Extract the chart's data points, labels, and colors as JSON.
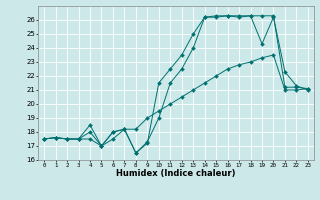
{
  "title": "",
  "xlabel": "Humidex (Indice chaleur)",
  "bg_color": "#cce8e8",
  "grid_color": "#ffffff",
  "line_color": "#007070",
  "xlim": [
    -0.5,
    23.5
  ],
  "ylim": [
    16,
    27
  ],
  "xticks": [
    0,
    1,
    2,
    3,
    4,
    5,
    6,
    7,
    8,
    9,
    10,
    11,
    12,
    13,
    14,
    15,
    16,
    17,
    18,
    19,
    20,
    21,
    22,
    23
  ],
  "yticks": [
    16,
    17,
    18,
    19,
    20,
    21,
    22,
    23,
    24,
    25,
    26
  ],
  "series": [
    {
      "x": [
        0,
        1,
        2,
        3,
        4,
        5,
        6,
        7,
        8,
        9,
        10,
        11,
        12,
        13,
        14,
        15,
        16,
        17,
        18,
        19,
        20,
        21,
        22,
        23
      ],
      "y": [
        17.5,
        17.6,
        17.5,
        17.5,
        17.5,
        17.0,
        17.5,
        18.2,
        18.2,
        19.0,
        19.5,
        20.0,
        20.5,
        21.0,
        21.5,
        22.0,
        22.5,
        22.8,
        23.0,
        23.3,
        23.5,
        21.0,
        21.0,
        21.1
      ]
    },
    {
      "x": [
        0,
        1,
        2,
        3,
        4,
        5,
        6,
        7,
        8,
        9,
        10,
        11,
        12,
        13,
        14,
        15,
        16,
        17,
        18,
        19,
        20,
        21,
        22,
        23
      ],
      "y": [
        17.5,
        17.6,
        17.5,
        17.5,
        18.0,
        17.0,
        18.0,
        18.2,
        16.5,
        17.2,
        21.5,
        22.5,
        23.5,
        25.0,
        26.2,
        26.2,
        26.3,
        26.2,
        26.3,
        24.3,
        26.2,
        22.3,
        21.3,
        21.0
      ]
    },
    {
      "x": [
        0,
        1,
        2,
        3,
        4,
        5,
        6,
        7,
        8,
        9,
        10,
        11,
        12,
        13,
        14,
        15,
        16,
        17,
        18,
        19,
        20,
        21,
        22,
        23
      ],
      "y": [
        17.5,
        17.6,
        17.5,
        17.5,
        18.5,
        17.0,
        18.0,
        18.2,
        16.5,
        17.3,
        19.0,
        21.5,
        22.5,
        24.0,
        26.2,
        26.3,
        26.3,
        26.3,
        26.3,
        26.3,
        26.3,
        21.2,
        21.2,
        21.1
      ]
    }
  ]
}
